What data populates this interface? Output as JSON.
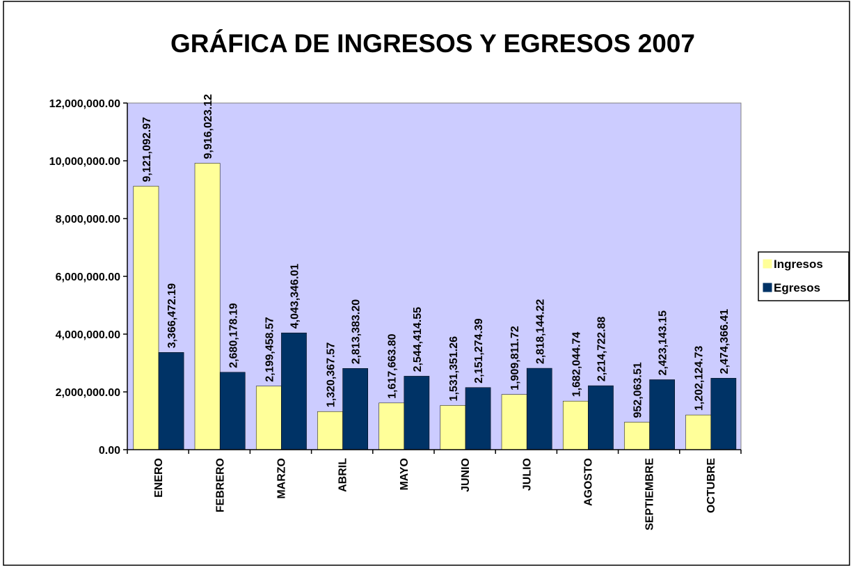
{
  "chart_data": {
    "type": "bar",
    "title": "GRÁFICA DE INGRESOS Y EGRESOS 2007",
    "categories": [
      "ENERO",
      "FEBRERO",
      "MARZO",
      "ABRIL",
      "MAYO",
      "JUNIO",
      "JULIO",
      "AGOSTO",
      "SEPTIEMBRE",
      "OCTUBRE"
    ],
    "series": [
      {
        "name": "Ingresos",
        "color": "#ffff99",
        "values": [
          9121092.97,
          9916023.12,
          2199458.57,
          1320367.57,
          1617663.8,
          1531351.26,
          1909811.72,
          1682044.74,
          952063.51,
          1202124.73
        ],
        "value_labels": [
          "9,121,092.97",
          "9,916,023.12",
          "2,199,458.57",
          "1,320,367.57",
          "1,617,663.80",
          "1,531,351.26",
          "1,909,811.72",
          "1,682,044.74",
          "952,063.51",
          "1,202,124.73"
        ]
      },
      {
        "name": "Egresos",
        "color": "#003366",
        "values": [
          3366472.19,
          2680178.19,
          4043346.01,
          2813383.2,
          2544414.55,
          2151274.39,
          2818144.22,
          2214722.88,
          2423143.15,
          2474366.41
        ],
        "value_labels": [
          "3,366,472.19",
          "2,680,178.19",
          "4,043,346.01",
          "2,813,383.20",
          "2,544,414.55",
          "2,151,274.39",
          "2,818,144.22",
          "2,214,722.88",
          "2,423,143.15",
          "2,474,366.41"
        ]
      }
    ],
    "ylim": [
      0,
      12000000
    ],
    "yticks": [
      {
        "value": 0,
        "label": "0.00"
      },
      {
        "value": 2000000,
        "label": "2,000,000.00"
      },
      {
        "value": 4000000,
        "label": "4,000,000.00"
      },
      {
        "value": 6000000,
        "label": "6,000,000.00"
      },
      {
        "value": 8000000,
        "label": "8,000,000.00"
      },
      {
        "value": 10000000,
        "label": "10,000,000.00"
      },
      {
        "value": 12000000,
        "label": "12,000,000.00"
      }
    ],
    "grid": false,
    "plot_background": "#ccccff",
    "legend": "right"
  }
}
